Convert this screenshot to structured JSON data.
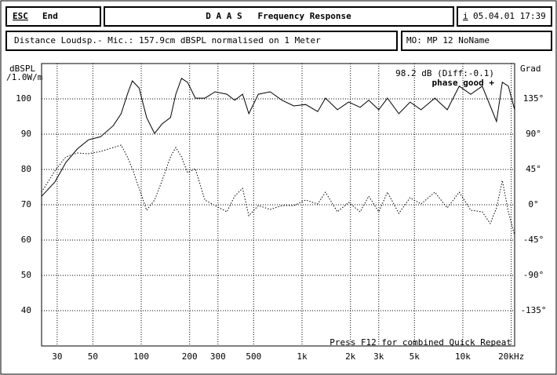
{
  "header": {
    "esc": "ESC",
    "end": "End",
    "title": "D A A S   Frequency Response",
    "info_key": "i",
    "datetime": "05.04.01 17:39",
    "distance": "Distance Loudsp.- Mic.: 157.9cm dBSPL normalised on 1 Meter",
    "model": "MO: MP 12 NoName"
  },
  "chart_data": {
    "type": "line",
    "ylabel": "dBSPL",
    "ylabel_unit": "/1.0W/m",
    "y2label": "Grad",
    "annotations": [
      "98.2 dB (Diff:-0.1)",
      "phase good +",
      "Press F12 for combined Quick Repeat"
    ],
    "xscale": "log",
    "grid": true,
    "xlim": [
      24,
      21000
    ],
    "ylim": [
      30,
      110
    ],
    "y2lim": [
      -180,
      180
    ],
    "xticks": [
      30,
      50,
      100,
      200,
      300,
      500,
      {
        "value": 1000,
        "label": "1k"
      },
      {
        "value": 2000,
        "label": "2k"
      },
      {
        "value": 3000,
        "label": "3k"
      },
      {
        "value": 5000,
        "label": "5k"
      },
      {
        "value": 10000,
        "label": "10k"
      },
      {
        "value": 20000,
        "label": "20kHz"
      }
    ],
    "yticks": [
      40,
      50,
      60,
      70,
      80,
      90,
      100
    ],
    "y2ticks": [
      {
        "value": -135,
        "label": "-135°"
      },
      {
        "value": -90,
        "label": "-90°"
      },
      {
        "value": -45,
        "label": "-45°"
      },
      {
        "value": 0,
        "label": "0°"
      },
      {
        "value": 45,
        "label": "45°"
      },
      {
        "value": 90,
        "label": "90°"
      },
      {
        "value": 135,
        "label": "135°"
      }
    ],
    "x": [
      24,
      29,
      34,
      40,
      47,
      56,
      67,
      75,
      82,
      88,
      97,
      108,
      121,
      135,
      152,
      164,
      178,
      194,
      217,
      249,
      288,
      341,
      381,
      427,
      467,
      535,
      634,
      751,
      889,
      1053,
      1250,
      1400,
      1660,
      1950,
      2300,
      2600,
      3000,
      3400,
      4000,
      4700,
      5500,
      6700,
      8000,
      9500,
      11200,
      13200,
      14800,
      16200,
      17600,
      19200,
      21000
    ],
    "series": [
      {
        "name": "magnitude",
        "color": "#000000",
        "dash": "solid",
        "values": [
          72.4,
          76.4,
          82,
          85.8,
          88.4,
          89.3,
          92.4,
          95.8,
          101.3,
          105.1,
          103.1,
          94.7,
          90.2,
          92.9,
          94.7,
          101.3,
          105.8,
          104.7,
          100.2,
          100.2,
          102,
          101.3,
          99.6,
          101.3,
          95.8,
          101.3,
          102,
          99.6,
          98,
          98.4,
          96.4,
          100.2,
          96.9,
          99.1,
          97.6,
          99.6,
          96.9,
          100.2,
          95.8,
          99.1,
          96.9,
          100.2,
          96.9,
          103.6,
          101.3,
          103.6,
          98,
          93.6,
          104.7,
          103.6,
          96.9
        ]
      },
      {
        "name": "phase",
        "color": "#000000",
        "dash": "dotted",
        "axis": "y2",
        "values": [
          16,
          43,
          61,
          66,
          65,
          68,
          73,
          76,
          61,
          46,
          21,
          -7,
          6,
          31,
          61,
          73,
          61,
          41,
          46,
          6,
          -1,
          -9,
          11,
          21,
          -14,
          -1,
          -6,
          -1,
          -1,
          6,
          1,
          16,
          -9,
          3,
          -9,
          11,
          -9,
          16,
          -11,
          9,
          1,
          16,
          -4,
          16,
          -7,
          -9,
          -24,
          -4,
          31,
          -9,
          -39
        ]
      }
    ]
  }
}
